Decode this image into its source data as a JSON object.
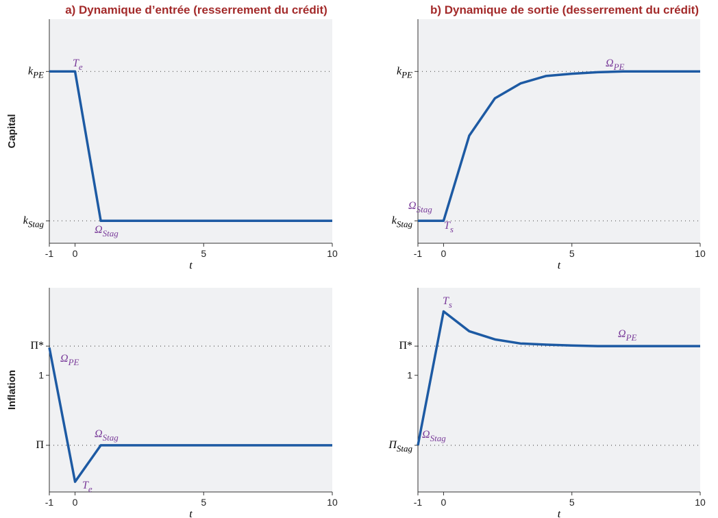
{
  "chart_data": [
    {
      "type": "line",
      "title": "a) Dynamique d’entrée (resserrement du crédit)",
      "ylabel": "Capital",
      "xlabel": "t",
      "x": [
        -1,
        0,
        1,
        2,
        3,
        4,
        5,
        6,
        7,
        8,
        9,
        10
      ],
      "series": [
        {
          "color": "#1d5aa3",
          "values": [
            1,
            1,
            0,
            0,
            0,
            0,
            0,
            0,
            0,
            0,
            0,
            0
          ]
        }
      ],
      "xlim": [
        -1,
        10
      ],
      "xticks": [
        -1,
        0,
        5,
        10
      ],
      "ylim": [
        -0.15,
        1.35
      ],
      "yticks": [
        {
          "value": 1,
          "label": "k",
          "sub": "PE"
        },
        {
          "value": 0,
          "label": "k",
          "sub": "Stag"
        }
      ],
      "annotations": [
        {
          "text": "T",
          "sub": "e"
        },
        {
          "text": "Ω",
          "sub": "Stag"
        }
      ]
    },
    {
      "type": "line",
      "title": "b) Dynamique de sortie (desserrement du crédit)",
      "xlabel": "t",
      "x": [
        -1,
        0,
        1,
        2,
        3,
        4,
        5,
        6,
        7,
        8,
        9,
        10
      ],
      "series": [
        {
          "color": "#1d5aa3",
          "values": [
            0,
            0,
            0.57,
            0.82,
            0.92,
            0.97,
            0.985,
            0.995,
            1,
            1,
            1,
            1
          ]
        }
      ],
      "xlim": [
        -1,
        10
      ],
      "xticks": [
        -1,
        0,
        5,
        10
      ],
      "ylim": [
        -0.15,
        1.35
      ],
      "yticks": [
        {
          "value": 1,
          "label": "k",
          "sub": "PE"
        },
        {
          "value": 0,
          "label": "k",
          "sub": "Stag"
        }
      ],
      "annotations": [
        {
          "text": "Ω",
          "sub": "PE"
        },
        {
          "text": "Ω",
          "sub": "Stag"
        },
        {
          "text": "T",
          "sub": "s"
        }
      ]
    },
    {
      "type": "line",
      "ylabel": "Inflation",
      "xlabel": "t",
      "x": [
        -1,
        0,
        1,
        2,
        3,
        4,
        5,
        6,
        7,
        8,
        9,
        10
      ],
      "series": [
        {
          "color": "#1d5aa3",
          "values": [
            1.0095,
            0.9635,
            0.976,
            0.976,
            0.976,
            0.976,
            0.976,
            0.976,
            0.976,
            0.976,
            0.976,
            0.976
          ]
        }
      ],
      "xlim": [
        -1,
        10
      ],
      "xticks": [
        -1,
        0,
        5,
        10
      ],
      "ylim": [
        0.96,
        1.03
      ],
      "yticks": [
        {
          "value": 1.01,
          "label": "Π*"
        },
        1,
        {
          "value": 0.976,
          "label": "Π"
        }
      ],
      "annotations": [
        {
          "text": "Ω",
          "sub": "PE"
        },
        {
          "text": "Ω",
          "sub": "Stag"
        },
        {
          "text": "T",
          "sub": "e"
        }
      ]
    },
    {
      "type": "line",
      "xlabel": "t",
      "x": [
        -1,
        0,
        1,
        2,
        3,
        4,
        5,
        6,
        7,
        8,
        9,
        10
      ],
      "series": [
        {
          "color": "#1d5aa3",
          "values": [
            0.976,
            1.0219,
            1.0151,
            1.0123,
            1.0109,
            1.0105,
            1.0102,
            1.01,
            1.01,
            1.01,
            1.01,
            1.01
          ]
        }
      ],
      "xlim": [
        -1,
        10
      ],
      "xticks": [
        -1,
        0,
        5,
        10
      ],
      "ylim": [
        0.96,
        1.03
      ],
      "yticks": [
        {
          "value": 1.01,
          "label": "Π*"
        },
        1,
        {
          "value": 0.976,
          "label": "Π",
          "sub": "Stag"
        }
      ],
      "annotations": [
        {
          "text": "T",
          "sub": "s"
        },
        {
          "text": "Ω",
          "sub": "PE"
        },
        {
          "text": "Ω",
          "sub": "Stag"
        }
      ]
    }
  ]
}
